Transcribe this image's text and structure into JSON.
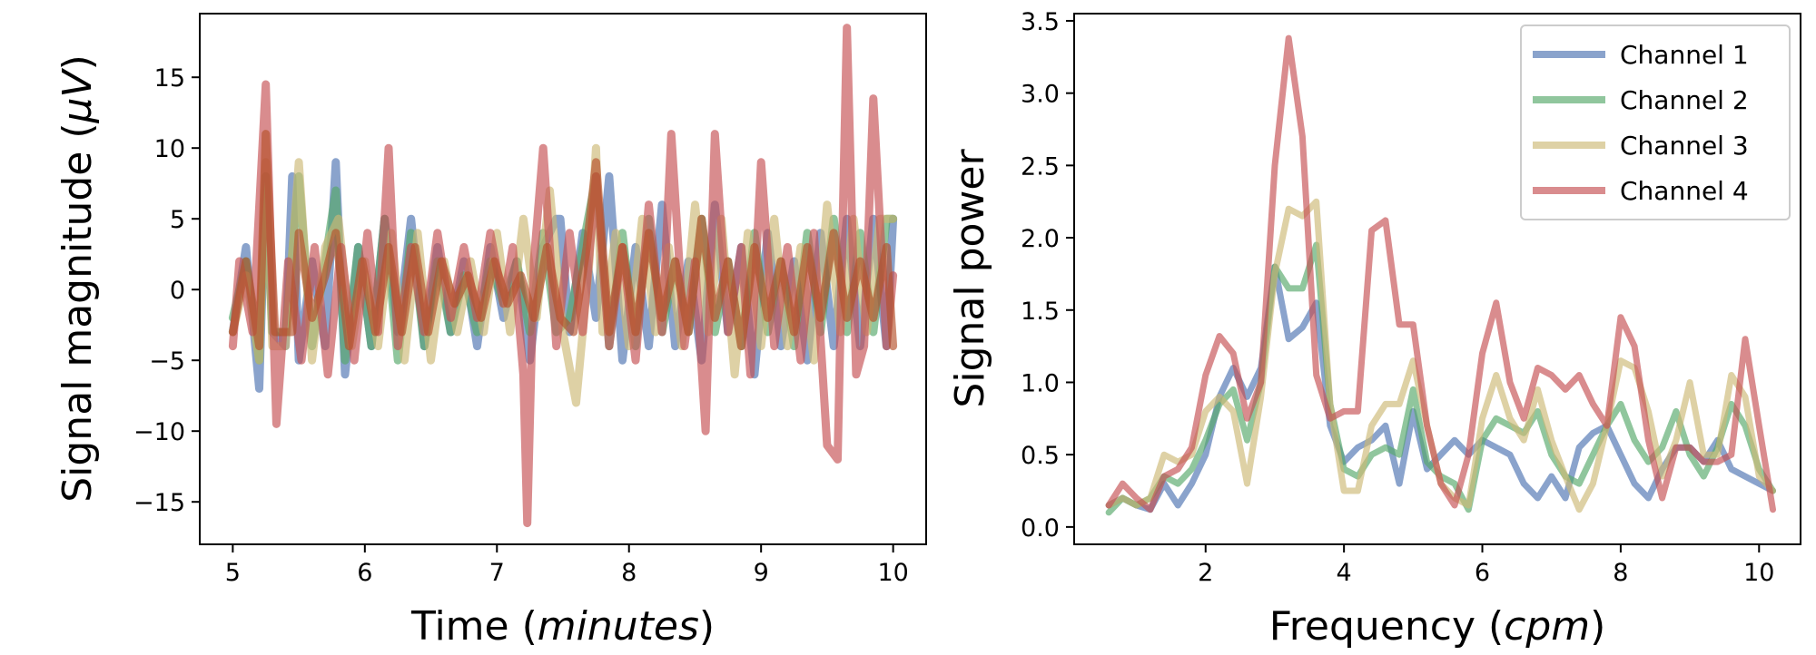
{
  "chart_data": [
    {
      "type": "line",
      "title": "",
      "xlabel": "Time (minutes)",
      "xlabel_main": "Time (",
      "xlabel_italic": "minutes",
      "xlabel_end": ")",
      "ylabel": "Signal magnitude (μV)",
      "ylabel_main": "Signal magnitude (",
      "ylabel_italic": "μV",
      "ylabel_end": ")",
      "xlim": [
        4.75,
        10.25
      ],
      "ylim": [
        -18,
        19.5
      ],
      "xticks": [
        5,
        6,
        7,
        8,
        9,
        10
      ],
      "yticks": [
        -15,
        -10,
        -5,
        0,
        5,
        10,
        15
      ],
      "xtick_labels": [
        "5",
        "6",
        "7",
        "8",
        "9",
        "10"
      ],
      "ytick_labels": [
        "−15",
        "−10",
        "−5",
        "0",
        "5",
        "10",
        "15"
      ],
      "grid": false,
      "series": [
        {
          "color": "#4c72b0",
          "x": [
            5.0,
            5.1,
            5.2,
            5.25,
            5.3,
            5.4,
            5.45,
            5.5,
            5.6,
            5.7,
            5.78,
            5.85,
            5.95,
            6.05,
            6.15,
            6.25,
            6.35,
            6.45,
            6.55,
            6.65,
            6.75,
            6.85,
            6.95,
            7.05,
            7.15,
            7.25,
            7.35,
            7.45,
            7.48,
            7.55,
            7.65,
            7.75,
            7.85,
            7.95,
            8.05,
            8.15,
            8.25,
            8.35,
            8.45,
            8.55,
            8.65,
            8.75,
            8.85,
            8.95,
            9.05,
            9.15,
            9.25,
            9.35,
            9.45,
            9.55,
            9.65,
            9.75,
            9.85,
            9.95,
            10.0
          ],
          "y": [
            -3,
            3,
            -7,
            8,
            -3,
            -4,
            8,
            -5,
            2,
            -4,
            9,
            -6,
            3,
            -4,
            5,
            -3,
            5,
            -4,
            3,
            -3,
            2,
            -4,
            3,
            -2,
            2,
            -5,
            3,
            5,
            5,
            -3,
            4,
            -2,
            8,
            -5,
            3,
            -4,
            6,
            -4,
            2,
            -5,
            6,
            -3,
            3,
            -6,
            4,
            -4,
            2,
            -5,
            4,
            -4,
            5,
            -4,
            5,
            -4,
            5
          ]
        },
        {
          "color": "#55a868",
          "x": [
            5.0,
            5.1,
            5.2,
            5.25,
            5.3,
            5.4,
            5.5,
            5.6,
            5.7,
            5.78,
            5.85,
            5.95,
            6.05,
            6.15,
            6.25,
            6.35,
            6.45,
            6.55,
            6.65,
            6.75,
            6.85,
            6.95,
            7.05,
            7.15,
            7.25,
            7.35,
            7.45,
            7.55,
            7.65,
            7.75,
            7.85,
            7.95,
            8.05,
            8.15,
            8.25,
            8.35,
            8.45,
            8.55,
            8.65,
            8.75,
            8.85,
            8.95,
            9.05,
            9.15,
            9.25,
            9.35,
            9.45,
            9.55,
            9.65,
            9.75,
            9.85,
            9.95,
            10.0
          ],
          "y": [
            -2,
            2,
            -5,
            8,
            -3,
            -3,
            8,
            -4,
            2,
            7,
            -5,
            3,
            -4,
            5,
            -5,
            4,
            -4,
            2,
            -3,
            1,
            -3,
            2,
            -1,
            2,
            -3,
            4,
            -3,
            -2,
            3,
            8,
            -4,
            4,
            -4,
            5,
            -3,
            2,
            -3,
            5,
            -3,
            2,
            -4,
            4,
            -3,
            2,
            -4,
            4,
            -3,
            5,
            -3,
            4,
            -3,
            5,
            5
          ]
        },
        {
          "color": "#ccb974",
          "x": [
            5.0,
            5.1,
            5.2,
            5.25,
            5.3,
            5.4,
            5.5,
            5.6,
            5.7,
            5.8,
            5.9,
            6.0,
            6.1,
            6.2,
            6.3,
            6.4,
            6.5,
            6.6,
            6.7,
            6.8,
            6.9,
            7.0,
            7.1,
            7.2,
            7.3,
            7.4,
            7.5,
            7.6,
            7.7,
            7.75,
            7.8,
            7.9,
            8.0,
            8.1,
            8.2,
            8.3,
            8.4,
            8.5,
            8.6,
            8.7,
            8.8,
            8.9,
            9.0,
            9.1,
            9.2,
            9.3,
            9.4,
            9.5,
            9.6,
            9.7,
            9.8,
            9.9,
            10.0
          ],
          "y": [
            -3,
            1,
            -5,
            9,
            -4,
            -4,
            9,
            -5,
            3,
            5,
            -4,
            2,
            -4,
            4,
            -5,
            4,
            -5,
            2,
            -3,
            2,
            -3,
            4,
            -3,
            5,
            -2,
            7,
            -3,
            -8,
            2,
            10,
            -3,
            4,
            -4,
            5,
            -3,
            3,
            -4,
            6,
            -3,
            5,
            -6,
            4,
            -4,
            5,
            -4,
            3,
            -5,
            6,
            -3,
            5,
            -3,
            5,
            5
          ]
        },
        {
          "color": "#c44e52",
          "x": [
            5.0,
            5.05,
            5.15,
            5.25,
            5.33,
            5.42,
            5.52,
            5.62,
            5.72,
            5.82,
            5.92,
            6.02,
            6.1,
            6.18,
            6.25,
            6.35,
            6.45,
            6.55,
            6.65,
            6.75,
            6.85,
            6.95,
            7.05,
            7.12,
            7.2,
            7.23,
            7.28,
            7.35,
            7.45,
            7.55,
            7.65,
            7.75,
            7.85,
            7.95,
            8.05,
            8.15,
            8.25,
            8.32,
            8.42,
            8.5,
            8.58,
            8.65,
            8.75,
            8.85,
            8.92,
            9.0,
            9.1,
            9.2,
            9.3,
            9.4,
            9.5,
            9.58,
            9.65,
            9.72,
            9.78,
            9.85,
            9.95,
            10.0
          ],
          "y": [
            -4,
            2,
            -3,
            14.5,
            -9.5,
            2,
            -5,
            3,
            -6,
            3,
            -5,
            4,
            -3,
            10,
            -4,
            3,
            -3,
            4,
            -2,
            3,
            -2,
            4,
            -1,
            3,
            -6,
            -16.5,
            2,
            10,
            -4,
            4,
            -3,
            8,
            -4,
            3,
            -5,
            6,
            -3,
            11,
            -4,
            2,
            -10,
            11,
            -3,
            3,
            -6,
            9,
            -4,
            3,
            -5,
            4,
            -11,
            -12,
            18.5,
            -6,
            -4,
            13.5,
            -4,
            1
          ]
        },
        {
          "color": "#b5502a",
          "x": [
            5.0,
            5.1,
            5.2,
            5.25,
            5.32,
            5.45,
            5.5,
            5.6,
            5.7,
            5.78,
            5.88,
            5.98,
            6.08,
            6.18,
            6.28,
            6.38,
            6.48,
            6.58,
            6.68,
            6.78,
            6.88,
            6.98,
            7.08,
            7.18,
            7.28,
            7.38,
            7.48,
            7.58,
            7.68,
            7.75,
            7.85,
            7.95,
            8.05,
            8.15,
            8.25,
            8.35,
            8.45,
            8.55,
            8.65,
            8.75,
            8.85,
            8.95,
            9.05,
            9.15,
            9.25,
            9.35,
            9.45,
            9.55,
            9.65,
            9.75,
            9.85,
            9.95,
            10.0
          ],
          "y": [
            -3,
            2,
            -4,
            11,
            -3,
            -3,
            4,
            -2,
            1,
            4,
            -4,
            2,
            -3,
            3,
            -3,
            3,
            -3,
            2,
            -1,
            1,
            -2,
            2,
            -1,
            1,
            -2,
            3,
            -2,
            -3,
            3,
            9,
            -3,
            3,
            -3,
            4,
            -2,
            2,
            -3,
            5,
            -2,
            2,
            -4,
            3,
            -2,
            2,
            -3,
            3,
            -2,
            4,
            -2,
            2,
            -2,
            3,
            -4
          ]
        }
      ]
    },
    {
      "type": "line",
      "title": "",
      "xlabel": "Frequency (cpm)",
      "xlabel_main": "Frequency (",
      "xlabel_italic": "cpm",
      "xlabel_end": ")",
      "ylabel": "Signal power",
      "xlim": [
        0.1,
        10.6
      ],
      "ylim": [
        -0.12,
        3.55
      ],
      "xticks": [
        2,
        4,
        6,
        8,
        10
      ],
      "yticks": [
        0.0,
        0.5,
        1.0,
        1.5,
        2.0,
        2.5,
        3.0,
        3.5
      ],
      "xtick_labels": [
        "2",
        "4",
        "6",
        "8",
        "10"
      ],
      "ytick_labels": [
        "0.0",
        "0.5",
        "1.0",
        "1.5",
        "2.0",
        "2.5",
        "3.0",
        "3.5"
      ],
      "grid": false,
      "legend_position": "top-right",
      "x": [
        0.6,
        0.8,
        1.0,
        1.2,
        1.4,
        1.6,
        1.8,
        2.0,
        2.2,
        2.4,
        2.6,
        2.8,
        3.0,
        3.2,
        3.4,
        3.6,
        3.8,
        4.0,
        4.2,
        4.4,
        4.6,
        4.8,
        5.0,
        5.2,
        5.4,
        5.6,
        5.8,
        6.0,
        6.2,
        6.4,
        6.6,
        6.8,
        7.0,
        7.2,
        7.4,
        7.6,
        7.8,
        8.0,
        8.2,
        8.4,
        8.6,
        8.8,
        9.0,
        9.2,
        9.4,
        9.6,
        9.8,
        10.0,
        10.2
      ],
      "series": [
        {
          "name": "Channel 1",
          "color": "#4c72b0",
          "y": [
            0.15,
            0.2,
            0.15,
            0.12,
            0.3,
            0.15,
            0.3,
            0.5,
            0.9,
            1.1,
            0.9,
            1.1,
            1.8,
            1.3,
            1.38,
            1.55,
            0.7,
            0.45,
            0.55,
            0.6,
            0.7,
            0.3,
            0.8,
            0.4,
            0.5,
            0.6,
            0.5,
            0.6,
            0.55,
            0.5,
            0.3,
            0.2,
            0.35,
            0.2,
            0.55,
            0.65,
            0.7,
            0.5,
            0.3,
            0.2,
            0.4,
            0.55,
            0.55,
            0.45,
            0.6,
            0.4,
            0.35,
            0.3,
            0.25
          ]
        },
        {
          "name": "Channel 2",
          "color": "#55a868",
          "y": [
            0.1,
            0.2,
            0.15,
            0.2,
            0.35,
            0.3,
            0.4,
            0.6,
            0.85,
            0.95,
            0.6,
            1.0,
            1.8,
            1.65,
            1.65,
            1.95,
            0.85,
            0.4,
            0.35,
            0.5,
            0.55,
            0.5,
            0.95,
            0.45,
            0.35,
            0.3,
            0.12,
            0.6,
            0.75,
            0.7,
            0.65,
            0.8,
            0.5,
            0.35,
            0.3,
            0.5,
            0.7,
            0.85,
            0.6,
            0.45,
            0.55,
            0.8,
            0.5,
            0.35,
            0.55,
            0.85,
            0.7,
            0.4,
            0.25
          ]
        },
        {
          "name": "Channel 3",
          "color": "#ccb974",
          "y": [
            0.15,
            0.2,
            0.15,
            0.2,
            0.5,
            0.45,
            0.5,
            0.8,
            0.9,
            0.8,
            0.3,
            0.9,
            1.75,
            2.2,
            2.15,
            2.25,
            0.85,
            0.25,
            0.25,
            0.7,
            0.85,
            0.85,
            1.15,
            0.7,
            0.3,
            0.2,
            0.15,
            0.75,
            1.05,
            0.75,
            0.6,
            0.95,
            0.6,
            0.35,
            0.12,
            0.3,
            0.7,
            1.15,
            1.1,
            0.8,
            0.35,
            0.6,
            1.0,
            0.5,
            0.5,
            1.05,
            0.9,
            0.35,
            0.25
          ]
        },
        {
          "name": "Channel 4",
          "color": "#c44e52",
          "y": [
            0.15,
            0.3,
            0.2,
            0.12,
            0.35,
            0.4,
            0.55,
            1.05,
            1.32,
            1.2,
            0.75,
            1.0,
            2.5,
            3.38,
            2.7,
            1.05,
            0.75,
            0.8,
            0.8,
            2.05,
            2.12,
            1.4,
            1.4,
            0.7,
            0.3,
            0.15,
            0.5,
            1.2,
            1.55,
            1.0,
            0.75,
            1.1,
            1.05,
            0.95,
            1.05,
            0.85,
            0.7,
            1.45,
            1.25,
            0.6,
            0.2,
            0.55,
            0.55,
            0.45,
            0.45,
            0.5,
            1.3,
            0.7,
            0.12
          ]
        }
      ]
    }
  ]
}
